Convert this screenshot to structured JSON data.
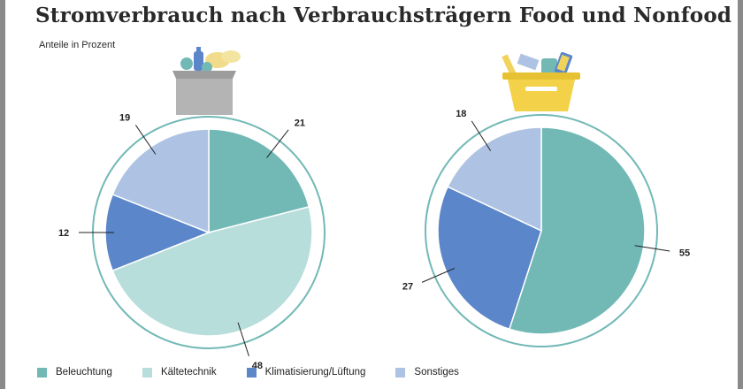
{
  "title": "Stromverbrauch nach Verbrauchsträgern Food und Nonfood",
  "subtitle": "Anteile in Prozent",
  "icons": [
    "food-shopping-bag-icon",
    "nonfood-basket-icon"
  ],
  "colors": {
    "Beleuchtung": "#72b9b6",
    "Kältetechnik": "#b8dedc",
    "Klimatisierung/Lüftung": "#5b86c9",
    "Sonstiges": "#aec3e3",
    "ring": "#72b9b6",
    "separator": "#ffffff"
  },
  "legend": [
    {
      "label": "Beleuchtung",
      "color": "#72b9b6"
    },
    {
      "label": "Kältetechnik",
      "color": "#b8dedc"
    },
    {
      "label": "Klimatisierung/Lüftung",
      "color": "#5b86c9"
    },
    {
      "label": "Sonstiges",
      "color": "#aec3e3"
    }
  ],
  "chart_data": [
    {
      "type": "pie",
      "title": "",
      "category": "Food",
      "slices": [
        {
          "label": "Beleuchtung",
          "value": 21
        },
        {
          "label": "Kältetechnik",
          "value": 48
        },
        {
          "label": "Klimatisierung/Lüftung",
          "value": 12
        },
        {
          "label": "Sonstiges",
          "value": 19
        }
      ]
    },
    {
      "type": "pie",
      "title": "",
      "category": "Nonfood",
      "slices": [
        {
          "label": "Beleuchtung",
          "value": 55
        },
        {
          "label": "Klimatisierung/Lüftung",
          "value": 27
        },
        {
          "label": "Sonstiges",
          "value": 18
        }
      ]
    }
  ]
}
